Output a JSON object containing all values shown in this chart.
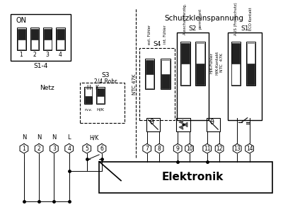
{
  "bg_color": "#f0f0f0",
  "line_color": "#000000",
  "title": "Schutzkleinspannung",
  "elektronik": "Elektronik",
  "s14_label": "S1-4",
  "on_label": "ON",
  "s3_label": "S3",
  "s3_sub": "2/4 Rohr",
  "netz_label": "Netz",
  "s4_label": "S4",
  "s2_label": "S2",
  "s1_label": "S1",
  "ntc47k": "NTC 47K",
  "ext_fuhler": "ext. Fühler",
  "int_fuhler": "int. Fühler",
  "ausschalt": "Ausschaltverzög.",
  "permanent": "permanent",
  "hk_fuhler": "H/K-Fühler",
  "hk_kontakt": "H/K-Kontakt",
  "ntc47k2": "NTC  47K",
  "aus_frost": "AUS (Frostschutz)",
  "eco_kontakt": "ECO Kontakt",
  "n_labels": [
    "N",
    "N",
    "N",
    "L"
  ],
  "hk_label": "H/K"
}
